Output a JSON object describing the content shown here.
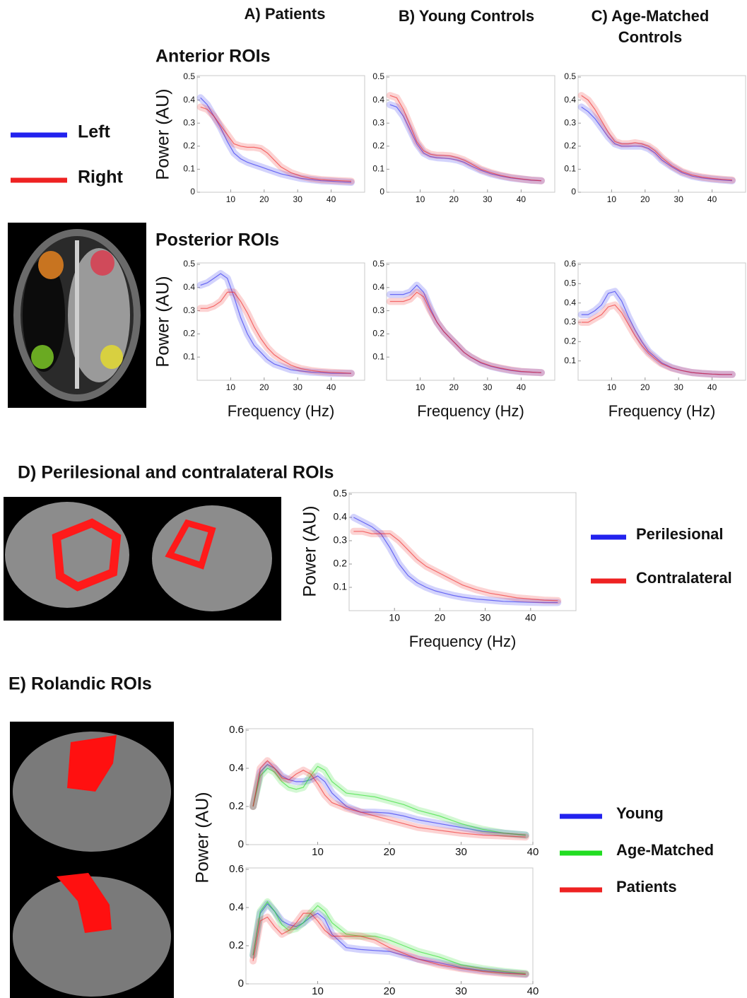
{
  "column_headers": [
    "A) Patients",
    "B) Young Controls",
    "C) Age-Matched Controls"
  ],
  "chart_data": [
    {
      "type": "line",
      "title": "Anterior ROIs",
      "y_label": "Power (AU)",
      "legend": true,
      "x": [
        1,
        3,
        5,
        7,
        9,
        11,
        13,
        15,
        17,
        19,
        21,
        23,
        25,
        28,
        31,
        34,
        37,
        40,
        43,
        46
      ],
      "xlim": [
        0,
        50
      ],
      "xticks": [
        10,
        20,
        30,
        40
      ],
      "ylim": [
        0,
        0.5
      ],
      "yticks": [
        0,
        0.1,
        0.2,
        0.3,
        0.4,
        0.5
      ],
      "series": [
        {
          "name": "Left",
          "color": "#2222ee",
          "values": [
            0.41,
            0.38,
            0.33,
            0.28,
            0.22,
            0.17,
            0.145,
            0.13,
            0.12,
            0.11,
            0.1,
            0.09,
            0.08,
            0.07,
            0.06,
            0.055,
            0.05,
            0.048,
            0.045,
            0.043
          ]
        },
        {
          "name": "Right",
          "color": "#ee2222",
          "values": [
            0.37,
            0.36,
            0.33,
            0.29,
            0.25,
            0.21,
            0.2,
            0.195,
            0.195,
            0.19,
            0.17,
            0.14,
            0.11,
            0.085,
            0.07,
            0.06,
            0.055,
            0.052,
            0.05,
            0.048
          ]
        }
      ]
    },
    {
      "type": "line",
      "x": [
        1,
        3,
        5,
        7,
        9,
        11,
        13,
        15,
        17,
        19,
        21,
        23,
        25,
        28,
        31,
        34,
        37,
        40,
        43,
        46
      ],
      "xlim": [
        0,
        50
      ],
      "xticks": [
        10,
        20,
        30,
        40
      ],
      "ylim": [
        0,
        0.5
      ],
      "yticks": [
        0,
        0.1,
        0.2,
        0.3,
        0.4,
        0.5
      ],
      "series": [
        {
          "name": "Left",
          "color": "#2222ee",
          "values": [
            0.38,
            0.37,
            0.33,
            0.27,
            0.21,
            0.17,
            0.155,
            0.15,
            0.148,
            0.145,
            0.14,
            0.13,
            0.115,
            0.095,
            0.08,
            0.07,
            0.062,
            0.057,
            0.052,
            0.05
          ]
        },
        {
          "name": "Right",
          "color": "#ee2222",
          "values": [
            0.42,
            0.41,
            0.36,
            0.29,
            0.22,
            0.18,
            0.165,
            0.16,
            0.16,
            0.158,
            0.15,
            0.14,
            0.125,
            0.1,
            0.085,
            0.073,
            0.064,
            0.058,
            0.053,
            0.05
          ]
        }
      ]
    },
    {
      "type": "line",
      "x": [
        1,
        3,
        5,
        7,
        9,
        11,
        13,
        15,
        17,
        19,
        21,
        23,
        25,
        28,
        31,
        34,
        37,
        40,
        43,
        46
      ],
      "xlim": [
        0,
        50
      ],
      "xticks": [
        10,
        20,
        30,
        40
      ],
      "ylim": [
        0,
        0.5
      ],
      "yticks": [
        0,
        0.1,
        0.2,
        0.3,
        0.4,
        0.5
      ],
      "series": [
        {
          "name": "Left",
          "color": "#2222ee",
          "values": [
            0.37,
            0.35,
            0.32,
            0.28,
            0.24,
            0.21,
            0.2,
            0.2,
            0.2,
            0.2,
            0.19,
            0.17,
            0.14,
            0.11,
            0.085,
            0.07,
            0.062,
            0.057,
            0.053,
            0.05
          ]
        },
        {
          "name": "Right",
          "color": "#ee2222",
          "values": [
            0.42,
            0.4,
            0.36,
            0.31,
            0.26,
            0.22,
            0.21,
            0.21,
            0.215,
            0.21,
            0.2,
            0.18,
            0.15,
            0.115,
            0.09,
            0.075,
            0.066,
            0.06,
            0.056,
            0.053
          ]
        }
      ]
    },
    {
      "type": "line",
      "title": "Posterior ROIs",
      "y_label": "Power (AU)",
      "x_label": "Frequency (Hz)",
      "x": [
        1,
        3,
        5,
        7,
        9,
        11,
        13,
        15,
        17,
        19,
        21,
        23,
        25,
        28,
        31,
        34,
        37,
        40,
        43,
        46
      ],
      "xlim": [
        0,
        50
      ],
      "xticks": [
        10,
        20,
        30,
        40
      ],
      "ylim": [
        0,
        0.5
      ],
      "yticks": [
        0.1,
        0.2,
        0.3,
        0.4,
        0.5
      ],
      "series": [
        {
          "name": "Left",
          "color": "#2222ee",
          "values": [
            0.41,
            0.42,
            0.44,
            0.46,
            0.44,
            0.36,
            0.27,
            0.2,
            0.15,
            0.12,
            0.09,
            0.07,
            0.06,
            0.045,
            0.04,
            0.035,
            0.033,
            0.03,
            0.03,
            0.03
          ]
        },
        {
          "name": "Right",
          "color": "#ee2222",
          "values": [
            0.31,
            0.31,
            0.32,
            0.34,
            0.38,
            0.38,
            0.34,
            0.29,
            0.23,
            0.18,
            0.14,
            0.11,
            0.09,
            0.065,
            0.05,
            0.042,
            0.037,
            0.034,
            0.032,
            0.03
          ]
        }
      ]
    },
    {
      "type": "line",
      "x_label": "Frequency (Hz)",
      "x": [
        1,
        3,
        5,
        7,
        9,
        11,
        13,
        15,
        17,
        19,
        21,
        23,
        25,
        28,
        31,
        34,
        37,
        40,
        43,
        46
      ],
      "xlim": [
        0,
        50
      ],
      "xticks": [
        10,
        20,
        30,
        40
      ],
      "ylim": [
        0,
        0.5
      ],
      "yticks": [
        0.1,
        0.2,
        0.3,
        0.4,
        0.5
      ],
      "series": [
        {
          "name": "Left",
          "color": "#2222ee",
          "values": [
            0.37,
            0.37,
            0.37,
            0.38,
            0.41,
            0.38,
            0.31,
            0.25,
            0.21,
            0.18,
            0.15,
            0.12,
            0.1,
            0.075,
            0.06,
            0.05,
            0.042,
            0.037,
            0.035,
            0.033
          ]
        },
        {
          "name": "Right",
          "color": "#ee2222",
          "values": [
            0.34,
            0.34,
            0.34,
            0.35,
            0.38,
            0.36,
            0.3,
            0.25,
            0.21,
            0.18,
            0.15,
            0.12,
            0.1,
            0.077,
            0.062,
            0.052,
            0.044,
            0.038,
            0.035,
            0.033
          ]
        }
      ]
    },
    {
      "type": "line",
      "x_label": "Frequency (Hz)",
      "x": [
        1,
        3,
        5,
        7,
        9,
        11,
        13,
        15,
        17,
        19,
        21,
        23,
        25,
        28,
        31,
        34,
        37,
        40,
        43,
        46
      ],
      "xlim": [
        0,
        50
      ],
      "xticks": [
        10,
        20,
        30,
        40
      ],
      "ylim": [
        0,
        0.6
      ],
      "yticks": [
        0.1,
        0.2,
        0.3,
        0.4,
        0.5,
        0.6
      ],
      "series": [
        {
          "name": "Left",
          "color": "#2222ee",
          "values": [
            0.34,
            0.34,
            0.36,
            0.39,
            0.45,
            0.46,
            0.41,
            0.33,
            0.26,
            0.2,
            0.15,
            0.12,
            0.09,
            0.065,
            0.05,
            0.04,
            0.035,
            0.032,
            0.03,
            0.03
          ]
        },
        {
          "name": "Right",
          "color": "#ee2222",
          "values": [
            0.3,
            0.3,
            0.32,
            0.34,
            0.38,
            0.39,
            0.35,
            0.29,
            0.23,
            0.18,
            0.14,
            0.11,
            0.085,
            0.063,
            0.05,
            0.04,
            0.035,
            0.032,
            0.03,
            0.03
          ]
        }
      ]
    },
    {
      "type": "line",
      "title": "D) Perilesional and contralateral  ROIs",
      "y_label": "Power (AU)",
      "x_label": "Frequency (Hz)",
      "legend": true,
      "x": [
        1,
        3,
        5,
        7,
        9,
        11,
        13,
        15,
        17,
        19,
        21,
        23,
        25,
        28,
        31,
        34,
        37,
        40,
        43,
        46
      ],
      "xlim": [
        0,
        50
      ],
      "xticks": [
        10,
        20,
        30,
        40
      ],
      "ylim": [
        0,
        0.5
      ],
      "yticks": [
        0.1,
        0.2,
        0.3,
        0.4,
        0.5
      ],
      "series": [
        {
          "name": "Perilesional",
          "color": "#2222ee",
          "values": [
            0.4,
            0.38,
            0.36,
            0.33,
            0.27,
            0.2,
            0.15,
            0.12,
            0.1,
            0.085,
            0.075,
            0.065,
            0.058,
            0.05,
            0.045,
            0.04,
            0.038,
            0.036,
            0.035,
            0.035
          ]
        },
        {
          "name": "Contralateral",
          "color": "#ee2222",
          "values": [
            0.34,
            0.34,
            0.33,
            0.33,
            0.33,
            0.3,
            0.26,
            0.22,
            0.19,
            0.17,
            0.15,
            0.13,
            0.11,
            0.09,
            0.075,
            0.065,
            0.055,
            0.05,
            0.045,
            0.043
          ]
        }
      ]
    },
    {
      "type": "line",
      "title": "E) Rolandic ROIs",
      "y_label": "Power (AU)",
      "legend": true,
      "x": [
        1,
        2,
        3,
        4,
        5,
        6,
        7,
        8,
        9,
        10,
        11,
        12,
        14,
        16,
        18,
        20,
        22,
        24,
        27,
        30,
        33,
        36,
        39
      ],
      "xlim": [
        0,
        40
      ],
      "xticks": [
        10,
        20,
        30,
        40
      ],
      "ylim": [
        0,
        0.6
      ],
      "yticks": [
        0,
        0.2,
        0.4,
        0.6
      ],
      "series": [
        {
          "name": "Young",
          "color": "#2222ee",
          "values": [
            0.2,
            0.38,
            0.42,
            0.4,
            0.36,
            0.34,
            0.33,
            0.33,
            0.34,
            0.36,
            0.33,
            0.27,
            0.2,
            0.17,
            0.17,
            0.165,
            0.15,
            0.13,
            0.11,
            0.09,
            0.07,
            0.06,
            0.05
          ]
        },
        {
          "name": "Age-Matched",
          "color": "#22dd22",
          "values": [
            0.2,
            0.36,
            0.4,
            0.38,
            0.33,
            0.3,
            0.29,
            0.3,
            0.36,
            0.41,
            0.39,
            0.33,
            0.27,
            0.26,
            0.25,
            0.23,
            0.21,
            0.18,
            0.15,
            0.11,
            0.08,
            0.06,
            0.05
          ]
        },
        {
          "name": "Patients",
          "color": "#ee2222",
          "values": [
            0.2,
            0.4,
            0.44,
            0.4,
            0.35,
            0.34,
            0.37,
            0.39,
            0.37,
            0.32,
            0.26,
            0.22,
            0.19,
            0.17,
            0.15,
            0.13,
            0.11,
            0.09,
            0.075,
            0.06,
            0.05,
            0.045,
            0.04
          ]
        }
      ]
    },
    {
      "type": "line",
      "x": [
        1,
        2,
        3,
        4,
        5,
        6,
        7,
        8,
        9,
        10,
        11,
        12,
        14,
        16,
        18,
        20,
        22,
        24,
        27,
        30,
        33,
        36,
        39
      ],
      "xlim": [
        0,
        40
      ],
      "xticks": [
        10,
        20,
        30,
        40
      ],
      "ylim": [
        0,
        0.6
      ],
      "yticks": [
        0,
        0.2,
        0.4,
        0.6
      ],
      "series": [
        {
          "name": "Young",
          "color": "#2222ee",
          "values": [
            0.15,
            0.37,
            0.42,
            0.38,
            0.33,
            0.31,
            0.3,
            0.32,
            0.35,
            0.37,
            0.34,
            0.26,
            0.19,
            0.18,
            0.175,
            0.17,
            0.15,
            0.13,
            0.11,
            0.085,
            0.07,
            0.06,
            0.05
          ]
        },
        {
          "name": "Age-Matched",
          "color": "#22dd22",
          "values": [
            0.15,
            0.38,
            0.43,
            0.38,
            0.31,
            0.28,
            0.29,
            0.32,
            0.37,
            0.41,
            0.38,
            0.32,
            0.26,
            0.25,
            0.25,
            0.23,
            0.2,
            0.17,
            0.14,
            0.1,
            0.08,
            0.065,
            0.055
          ]
        },
        {
          "name": "Patients",
          "color": "#ee2222",
          "values": [
            0.12,
            0.33,
            0.35,
            0.3,
            0.26,
            0.28,
            0.32,
            0.37,
            0.37,
            0.33,
            0.28,
            0.25,
            0.25,
            0.25,
            0.23,
            0.19,
            0.16,
            0.13,
            0.1,
            0.08,
            0.065,
            0.055,
            0.05
          ]
        }
      ]
    }
  ]
}
